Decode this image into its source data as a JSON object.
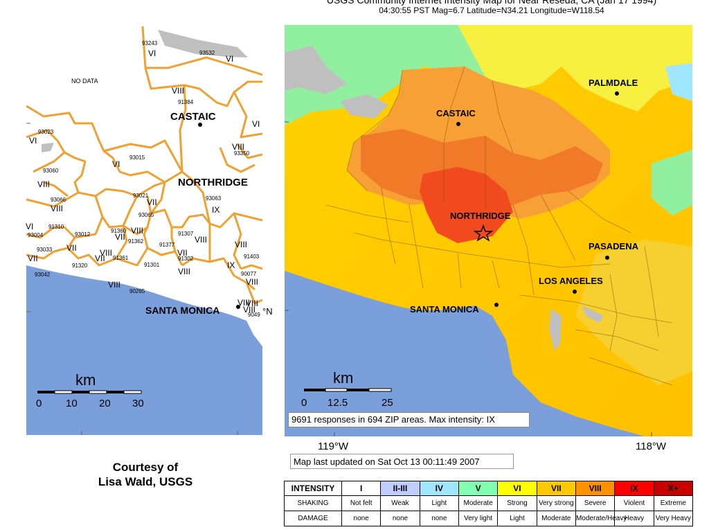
{
  "title": {
    "line1": "USGS Community Internet Intensity Map for Near Reseda, CA (Jan 17 1994)",
    "line2": "04:30:55 PST Mag=6.7 Latitude=N34.21 Longitude=W118.54"
  },
  "left_map": {
    "no_data_label": "NO DATA",
    "places": [
      {
        "name": "CASTAIC"
      },
      {
        "name": "NORTHRIDGE"
      },
      {
        "name": "SANTA MONICA"
      }
    ],
    "zip_labels": [
      "93243",
      "93532",
      "91384",
      "93023",
      "93350",
      "93060",
      "93015",
      "93021",
      "93063",
      "93066",
      "93065",
      "91310",
      "93012",
      "91360",
      "91362",
      "91377",
      "91307",
      "93004",
      "93033",
      "91361",
      "91301",
      "91302",
      "91403",
      "93042",
      "91320",
      "90265",
      "90077",
      "9049"
    ],
    "intensity_labels": [
      "VI",
      "VI",
      "VIII",
      "VI",
      "VI",
      "VIII",
      "VI",
      "VIII",
      "VII",
      "VIII",
      "IX",
      "VIII",
      "VII",
      "VIII",
      "VIII",
      "VII",
      "VII",
      "VII",
      "VIII",
      "VII",
      "VIII",
      "VIII",
      "VIII",
      "IX",
      "VIII",
      "VIII",
      "VIII",
      "VI"
    ],
    "scale": {
      "unit": "km",
      "ticks": [
        "0",
        "10",
        "20",
        "30"
      ]
    },
    "edge_label": "°N"
  },
  "right_map": {
    "places": [
      {
        "name": "PALMDALE"
      },
      {
        "name": "CASTAIC"
      },
      {
        "name": "NORTHRIDGE"
      },
      {
        "name": "PASADENA"
      },
      {
        "name": "LOS ANGELES"
      },
      {
        "name": "SANTA MONICA"
      }
    ],
    "scale": {
      "unit": "km",
      "ticks": [
        "0",
        "12.5",
        "25"
      ]
    },
    "responses_text": "9691 responses in 694 ZIP areas. Max intensity: IX",
    "lon_labels": [
      "119°W",
      "118°W"
    ]
  },
  "updated_text": "Map last updated on Sat Oct 13 00:11:49 2007",
  "credit": {
    "line1": "Courtesy of",
    "line2": "Lisa Wald, USGS"
  },
  "legend": {
    "row_labels": [
      "INTENSITY",
      "SHAKING",
      "DAMAGE"
    ],
    "columns": [
      {
        "intensity": "I",
        "shaking": "Not felt",
        "damage": "none",
        "color": "#ffffff"
      },
      {
        "intensity": "II-III",
        "shaking": "Weak",
        "damage": "none",
        "color": "#bfccff"
      },
      {
        "intensity": "IV",
        "shaking": "Light",
        "damage": "none",
        "color": "#a0e6ff"
      },
      {
        "intensity": "V",
        "shaking": "Moderate",
        "damage": "Very light",
        "color": "#80ffb0"
      },
      {
        "intensity": "VI",
        "shaking": "Strong",
        "damage": "Light",
        "color": "#ffff00"
      },
      {
        "intensity": "VII",
        "shaking": "Very strong",
        "damage": "Moderate",
        "color": "#ffc800"
      },
      {
        "intensity": "VIII",
        "shaking": "Severe",
        "damage": "Moderate/Heavy",
        "color": "#ff9100"
      },
      {
        "intensity": "IX",
        "shaking": "Violent",
        "damage": "Heavy",
        "color": "#ff0000"
      },
      {
        "intensity": "X+",
        "shaking": "Extreme",
        "damage": "Very Heavy",
        "color": "#c80000"
      }
    ]
  },
  "colors": {
    "ocean": "#7a9fdb",
    "boundary_orange": "#f0a030",
    "no_data_gray": "#bfbfbf"
  }
}
